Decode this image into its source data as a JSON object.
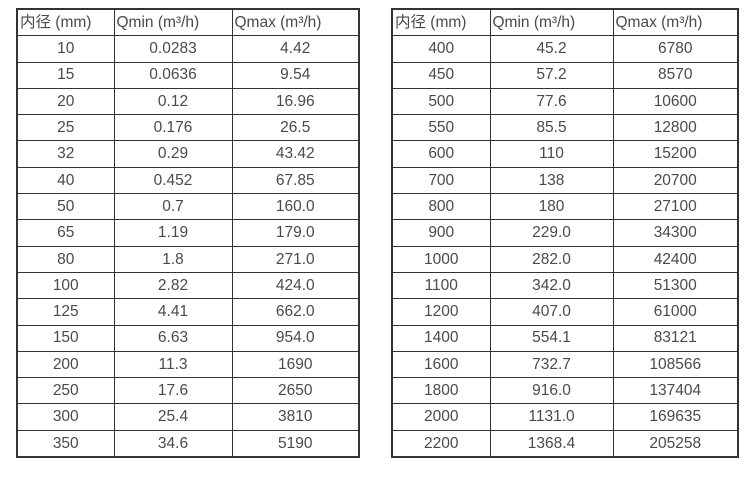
{
  "page": {
    "background_color": "#ffffff",
    "text_color": "#4a4a4a",
    "border_color": "#333333"
  },
  "tables": [
    {
      "name": "flow-spec-table-small-diameters",
      "headers": [
        "内径 (mm)",
        "Qmin (m³/h)",
        "Qmax (m³/h)"
      ],
      "rows": [
        [
          "10",
          "0.0283",
          "4.42"
        ],
        [
          "15",
          "0.0636",
          "9.54"
        ],
        [
          "20",
          "0.12",
          "16.96"
        ],
        [
          "25",
          "0.176",
          "26.5"
        ],
        [
          "32",
          "0.29",
          "43.42"
        ],
        [
          "40",
          "0.452",
          "67.85"
        ],
        [
          "50",
          "0.7",
          "160.0"
        ],
        [
          "65",
          "1.19",
          "179.0"
        ],
        [
          "80",
          "1.8",
          "271.0"
        ],
        [
          "100",
          "2.82",
          "424.0"
        ],
        [
          "125",
          "4.41",
          "662.0"
        ],
        [
          "150",
          "6.63",
          "954.0"
        ],
        [
          "200",
          "11.3",
          "1690"
        ],
        [
          "250",
          "17.6",
          "2650"
        ],
        [
          "300",
          "25.4",
          "3810"
        ],
        [
          "350",
          "34.6",
          "5190"
        ]
      ]
    },
    {
      "name": "flow-spec-table-large-diameters",
      "headers": [
        "内径 (mm)",
        "Qmin (m³/h)",
        "Qmax (m³/h)"
      ],
      "rows": [
        [
          "400",
          "45.2",
          "6780"
        ],
        [
          "450",
          "57.2",
          "8570"
        ],
        [
          "500",
          "77.6",
          "10600"
        ],
        [
          "550",
          "85.5",
          "12800"
        ],
        [
          "600",
          "110",
          "15200"
        ],
        [
          "700",
          "138",
          "20700"
        ],
        [
          "800",
          "180",
          "27100"
        ],
        [
          "900",
          "229.0",
          "34300"
        ],
        [
          "1000",
          "282.0",
          "42400"
        ],
        [
          "1100",
          "342.0",
          "51300"
        ],
        [
          "1200",
          "407.0",
          "61000"
        ],
        [
          "1400",
          "554.1",
          "83121"
        ],
        [
          "1600",
          "732.7",
          "108566"
        ],
        [
          "1800",
          "916.0",
          "137404"
        ],
        [
          "2000",
          "1131.0",
          "169635"
        ],
        [
          "2200",
          "1368.4",
          "205258"
        ]
      ]
    }
  ]
}
